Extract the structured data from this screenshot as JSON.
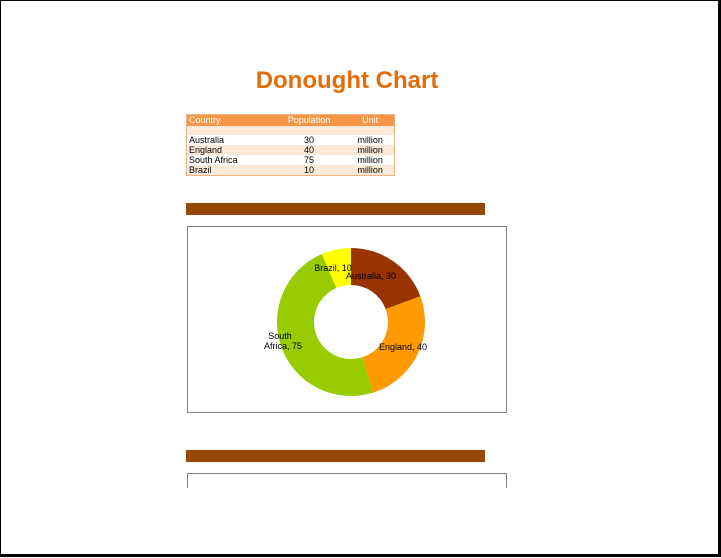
{
  "title": "Donought Chart",
  "table": {
    "headers": [
      "Country",
      "Population",
      "Unit"
    ],
    "rows": [
      {
        "country": "Australia",
        "population": "30",
        "unit": "million"
      },
      {
        "country": "England",
        "population": "40",
        "unit": "million"
      },
      {
        "country": "South Africa",
        "population": "75",
        "unit": "million"
      },
      {
        "country": "Brazil",
        "population": "10",
        "unit": "million"
      }
    ]
  },
  "colors": {
    "title": "#E46C0A",
    "header": "#F79646",
    "band": "#FDE9D9",
    "bar": "#974706"
  },
  "chart_data": {
    "type": "pie",
    "style": "donut",
    "categories": [
      "Australia",
      "England",
      "South Africa",
      "Brazil"
    ],
    "values": [
      30,
      40,
      75,
      10
    ],
    "colors": [
      "#993300",
      "#FF9900",
      "#99CC00",
      "#FFFF00"
    ],
    "data_labels": [
      "Australia, 30",
      "England, 40",
      "South Africa, 75",
      "Brazil, 10"
    ],
    "title": "",
    "legend": "none"
  }
}
